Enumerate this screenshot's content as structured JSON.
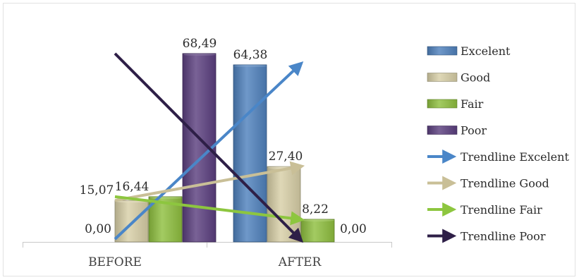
{
  "chart_data": {
    "type": "bar",
    "categories": [
      "BEFORE",
      "AFTER"
    ],
    "series": [
      {
        "name": "Excelent",
        "values": [
          0.0,
          64.38
        ],
        "value_labels": [
          "0,00",
          "64,38"
        ],
        "color": "#4f81bd"
      },
      {
        "name": "Good",
        "values": [
          15.07,
          27.4
        ],
        "value_labels": [
          "15,07",
          "27,40"
        ],
        "color": "#d8cfa7"
      },
      {
        "name": "Fair",
        "values": [
          16.44,
          8.22
        ],
        "value_labels": [
          "16,44",
          "8,22"
        ],
        "color": "#8fbf3f"
      },
      {
        "name": "Poor",
        "values": [
          68.49,
          0.0
        ],
        "value_labels": [
          "68,49",
          "0,00"
        ],
        "color": "#5b3f7f"
      }
    ],
    "trendlines": [
      {
        "name": "Trendline Excelent",
        "series": "Excelent",
        "color": "#4a86c8"
      },
      {
        "name": "Trendline Good",
        "series": "Good",
        "color": "#c9bf97"
      },
      {
        "name": "Trendline Fair",
        "series": "Fair",
        "color": "#8dc63f"
      },
      {
        "name": "Trendline Poor",
        "series": "Poor",
        "color": "#2e1f47"
      }
    ],
    "legend_position": "right",
    "grid": false
  }
}
